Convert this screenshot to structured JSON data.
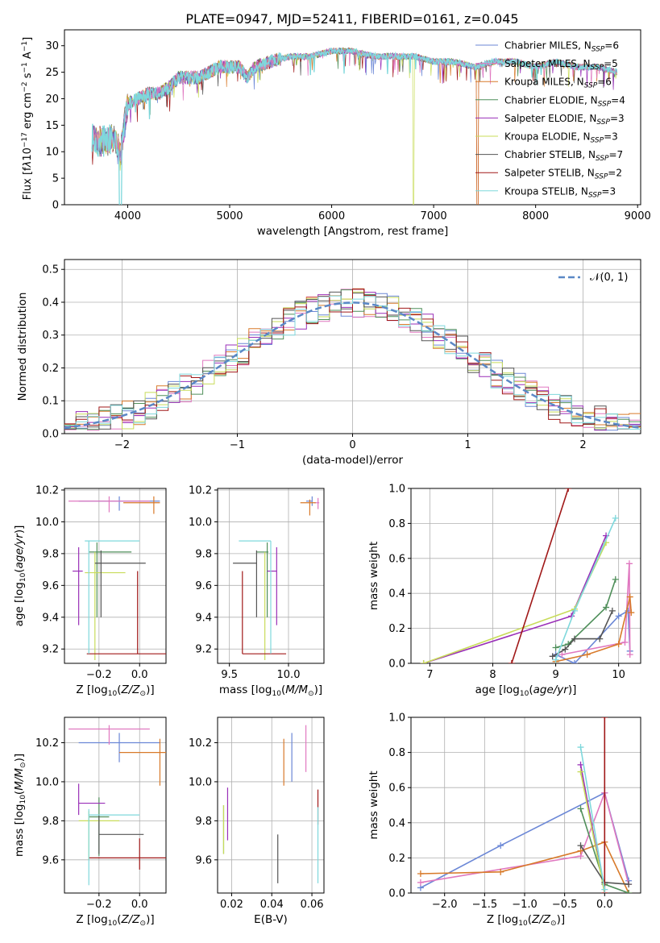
{
  "title": "PLATE=0947, MJD=52411, FIBERID=0161, z=0.045",
  "colors": {
    "Chabrier MILES": "#6b87d6",
    "Salpeter MILES": "#e078c0",
    "Kroupa MILES": "#d87a2a",
    "Chabrier ELODIE": "#4f8f5a",
    "Salpeter ELODIE": "#9a2fb8",
    "Kroupa ELODIE": "#c8dc5a",
    "Chabrier STELIB": "#555555",
    "Salpeter STELIB": "#a01818",
    "Kroupa STELIB": "#7fd8dc"
  },
  "chart_data": [
    {
      "type": "line",
      "title": "PLATE=0947, MJD=52411, FIBERID=0161, z=0.045",
      "xlabel": "wavelength [Angstrom, rest frame]",
      "ylabel": "Flux [f_λ 10^-17 erg cm^-2 s^-1 A^-1]",
      "xlim": [
        3380,
        9030
      ],
      "ylim": [
        0,
        33
      ],
      "xticks": [
        4000,
        5000,
        6000,
        7000,
        8000,
        9000
      ],
      "yticks": [
        0,
        5,
        10,
        15,
        20,
        25,
        30
      ],
      "legend": "top-right",
      "legend_entries": [
        {
          "model": "Chabrier MILES",
          "nssp": "6"
        },
        {
          "model": "Salpeter MILES",
          "nssp": "5"
        },
        {
          "model": "Kroupa MILES",
          "nssp": "6"
        },
        {
          "model": "Chabrier ELODIE",
          "nssp": "4"
        },
        {
          "model": "Salpeter ELODIE",
          "nssp": "3"
        },
        {
          "model": "Kroupa ELODIE",
          "nssp": "3"
        },
        {
          "model": "Chabrier STELIB",
          "nssp": "7"
        },
        {
          "model": "Salpeter STELIB",
          "nssp": "2"
        },
        {
          "model": "Kroupa STELIB",
          "nssp": "3"
        }
      ],
      "x": [
        3650,
        3700,
        3800,
        3870,
        3930,
        3960,
        4000,
        4100,
        4200,
        4300,
        4400,
        4500,
        4600,
        4700,
        4800,
        4900,
        5000,
        5100,
        5170,
        5250,
        5400,
        5600,
        5800,
        6000,
        6200,
        6400,
        6600,
        6800,
        7000,
        7200,
        7400,
        7600,
        7800,
        8000,
        8200,
        8400,
        8600,
        8800
      ],
      "y": [
        13,
        12,
        12,
        13,
        9,
        14,
        19,
        20,
        21,
        21,
        22,
        24,
        24,
        24,
        25,
        26,
        26,
        26,
        24,
        26,
        27,
        28,
        28,
        29,
        29,
        28,
        28,
        28,
        27,
        27,
        26,
        27,
        27,
        26,
        27,
        26,
        26,
        25
      ],
      "dips": [
        {
          "model": "Kroupa ELODIE",
          "from": 6800,
          "to": 6810
        },
        {
          "model": "Salpeter STELIB",
          "from": 7420,
          "to": 7440
        },
        {
          "model": "Kroupa MILES",
          "from": 7420,
          "to": 7440
        },
        {
          "model": "Kroupa STELIB",
          "from": 3920,
          "to": 3940
        }
      ]
    },
    {
      "type": "line",
      "xlabel": "(data-model)/error",
      "ylabel": "Normed distribution",
      "xlim": [
        -2.5,
        2.5
      ],
      "ylim": [
        0,
        0.53
      ],
      "xticks": [
        -2,
        -1,
        0,
        1,
        2
      ],
      "yticks": [
        0.0,
        0.1,
        0.2,
        0.3,
        0.4,
        0.5
      ],
      "grid": true,
      "legend": "top-right",
      "legend_label": "𝒩(0, 1)",
      "bin_width": 0.1,
      "bins_from": -2.5,
      "histogram_series": 9
    },
    {
      "type": "scatter",
      "xlabel": "Z [log10(Z/Z⊙)]",
      "ylabel": "age  [log10(age/yr)]",
      "xlim": [
        -0.37,
        0.13
      ],
      "ylim": [
        9.11,
        10.21
      ],
      "xticks": [
        -0.2,
        0.0
      ],
      "yticks": [
        9.2,
        9.4,
        9.6,
        9.8,
        10.0,
        10.2
      ],
      "grid": true,
      "points": [
        {
          "model": "Chabrier MILES",
          "x": -0.1,
          "y": 10.13,
          "xerr": [
            0.2,
            0.2
          ],
          "yerr": [
            0.06,
            0.03
          ]
        },
        {
          "model": "Salpeter MILES",
          "x": -0.15,
          "y": 10.13,
          "xerr": [
            0.2,
            0.2
          ],
          "yerr": [
            0.07,
            0.03
          ]
        },
        {
          "model": "Kroupa MILES",
          "x": 0.07,
          "y": 10.12,
          "xerr": [
            0.15,
            0.03
          ],
          "yerr": [
            0.07,
            0.04
          ]
        },
        {
          "model": "Chabrier ELODIE",
          "x": -0.21,
          "y": 9.81,
          "xerr": [
            0.04,
            0.17
          ],
          "yerr": [
            0.41,
            0.06
          ]
        },
        {
          "model": "Salpeter ELODIE",
          "x": -0.3,
          "y": 9.69,
          "xerr": [
            0.03,
            0.02
          ],
          "yerr": [
            0.34,
            0.15
          ]
        },
        {
          "model": "Kroupa ELODIE",
          "x": -0.22,
          "y": 9.68,
          "xerr": [
            0.05,
            0.15
          ],
          "yerr": [
            0.55,
            0.13
          ]
        },
        {
          "model": "Chabrier STELIB",
          "x": -0.19,
          "y": 9.74,
          "xerr": [
            0.03,
            0.22
          ],
          "yerr": [
            0.34,
            0.08
          ]
        },
        {
          "model": "Salpeter STELIB",
          "x": -0.01,
          "y": 9.17,
          "xerr": [
            0.25,
            0.14
          ],
          "yerr": [
            0.0,
            0.52
          ]
        },
        {
          "model": "Kroupa STELIB",
          "x": -0.25,
          "y": 9.88,
          "xerr": [
            0.02,
            0.25
          ],
          "yerr": [
            0.71,
            0.0
          ]
        }
      ]
    },
    {
      "type": "scatter",
      "xlabel": "mass [log10(M/M⊙)]",
      "xlim": [
        9.4,
        10.3
      ],
      "ylim": [
        9.11,
        10.21
      ],
      "xticks": [
        9.5,
        10.0
      ],
      "yticks": [
        9.2,
        9.4,
        9.6,
        9.8,
        10.0,
        10.2
      ],
      "grid": true,
      "points": [
        {
          "model": "Chabrier MILES",
          "x": 10.2,
          "y": 10.13,
          "xerr": [
            0.05,
            0.0
          ],
          "yerr": [
            0.03,
            0.03
          ]
        },
        {
          "model": "Salpeter MILES",
          "x": 10.25,
          "y": 10.12,
          "xerr": [
            0.03,
            0.01
          ],
          "yerr": [
            0.04,
            0.03
          ]
        },
        {
          "model": "Kroupa MILES",
          "x": 10.18,
          "y": 10.12,
          "xerr": [
            0.08,
            0.05
          ],
          "yerr": [
            0.08,
            0.02
          ]
        },
        {
          "model": "Chabrier ELODIE",
          "x": 9.82,
          "y": 9.81,
          "xerr": [
            0.09,
            0.01
          ],
          "yerr": [
            0.41,
            0.06
          ]
        },
        {
          "model": "Salpeter ELODIE",
          "x": 9.9,
          "y": 9.69,
          "xerr": [
            0.08,
            0.0
          ],
          "yerr": [
            0.34,
            0.15
          ]
        },
        {
          "model": "Kroupa ELODIE",
          "x": 9.8,
          "y": 9.68,
          "xerr": [
            0.0,
            0.0
          ],
          "yerr": [
            0.55,
            0.13
          ]
        },
        {
          "model": "Chabrier STELIB",
          "x": 9.73,
          "y": 9.74,
          "xerr": [
            0.2,
            0.0
          ],
          "yerr": [
            0.34,
            0.08
          ]
        },
        {
          "model": "Salpeter STELIB",
          "x": 9.61,
          "y": 9.17,
          "xerr": [
            0.0,
            0.37
          ],
          "yerr": [
            0.0,
            0.52
          ]
        },
        {
          "model": "Kroupa STELIB",
          "x": 9.85,
          "y": 9.88,
          "xerr": [
            0.27,
            0.0
          ],
          "yerr": [
            0.71,
            0.0
          ]
        }
      ]
    },
    {
      "type": "line",
      "xlabel": "age  [log10(age/yr)]",
      "ylabel": "mass weight",
      "xlim": [
        6.7,
        10.35
      ],
      "ylim": [
        0,
        1.0
      ],
      "xticks": [
        7,
        8,
        9,
        10
      ],
      "yticks": [
        0.0,
        0.2,
        0.4,
        0.6,
        0.8,
        1.0
      ],
      "grid": true,
      "series": [
        {
          "model": "Chabrier MILES",
          "x": [
            9.0,
            9.3,
            10.0,
            10.15,
            10.18
          ],
          "y": [
            0.05,
            0.0,
            0.27,
            0.3,
            0.07
          ]
        },
        {
          "model": "Salpeter MILES",
          "x": [
            9.1,
            10.1,
            10.17,
            10.18
          ],
          "y": [
            0.05,
            0.12,
            0.57,
            0.05
          ]
        },
        {
          "model": "Kroupa MILES",
          "x": [
            9.0,
            9.5,
            10.0,
            10.18,
            10.2
          ],
          "y": [
            0.01,
            0.05,
            0.11,
            0.38,
            0.29
          ]
        },
        {
          "model": "Chabrier ELODIE",
          "x": [
            9.0,
            9.2,
            9.8,
            9.95
          ],
          "y": [
            0.09,
            0.11,
            0.32,
            0.48
          ]
        },
        {
          "model": "Salpeter ELODIE",
          "x": [
            6.9,
            9.25,
            9.8
          ],
          "y": [
            0.0,
            0.27,
            0.73
          ]
        },
        {
          "model": "Kroupa ELODIE",
          "x": [
            6.9,
            9.3,
            9.8
          ],
          "y": [
            0.0,
            0.31,
            0.69
          ]
        },
        {
          "model": "Chabrier STELIB",
          "x": [
            8.95,
            9.15,
            9.3,
            9.7,
            9.9
          ],
          "y": [
            0.04,
            0.08,
            0.14,
            0.14,
            0.3
          ]
        },
        {
          "model": "Salpeter STELIB",
          "x": [
            8.3,
            9.2
          ],
          "y": [
            0.0,
            1.0
          ]
        },
        {
          "model": "Kroupa STELIB",
          "x": [
            9.0,
            9.3,
            9.95
          ],
          "y": [
            0.02,
            0.3,
            0.83
          ]
        }
      ]
    },
    {
      "type": "scatter",
      "xlabel": "Z [log10(Z/Z⊙)]",
      "ylabel": "mass [log10(M/M⊙)]",
      "xlim": [
        -0.37,
        0.13
      ],
      "ylim": [
        9.43,
        10.33
      ],
      "xticks": [
        -0.2,
        0.0
      ],
      "yticks": [
        9.6,
        9.8,
        10.0,
        10.2
      ],
      "grid": true,
      "points": [
        {
          "model": "Chabrier MILES",
          "x": -0.1,
          "y": 10.2,
          "xerr": [
            0.2,
            0.2
          ],
          "yerr": [
            0.1,
            0.05
          ]
        },
        {
          "model": "Salpeter MILES",
          "x": -0.15,
          "y": 10.27,
          "xerr": [
            0.2,
            0.2
          ],
          "yerr": [
            0.08,
            0.02
          ]
        },
        {
          "model": "Kroupa MILES",
          "x": 0.1,
          "y": 10.15,
          "xerr": [
            0.2,
            0.03
          ],
          "yerr": [
            0.17,
            0.07
          ]
        },
        {
          "model": "Chabrier ELODIE",
          "x": -0.2,
          "y": 9.82,
          "xerr": [
            0.05,
            0.05
          ],
          "yerr": [
            0.2,
            0.1
          ]
        },
        {
          "model": "Salpeter ELODIE",
          "x": -0.3,
          "y": 9.89,
          "xerr": [
            0.0,
            0.13
          ],
          "yerr": [
            0.06,
            0.1
          ]
        },
        {
          "model": "Kroupa ELODIE",
          "x": -0.25,
          "y": 9.8,
          "xerr": [
            0.05,
            0.15
          ],
          "yerr": [
            0.2,
            0.05
          ]
        },
        {
          "model": "Chabrier STELIB",
          "x": -0.2,
          "y": 9.73,
          "xerr": [
            0.0,
            0.22
          ],
          "yerr": [
            0.1,
            0.1
          ]
        },
        {
          "model": "Salpeter STELIB",
          "x": 0.0,
          "y": 9.61,
          "xerr": [
            0.25,
            0.13
          ],
          "yerr": [
            0.06,
            0.1
          ]
        },
        {
          "model": "Kroupa STELIB",
          "x": -0.25,
          "y": 9.83,
          "xerr": [
            0.0,
            0.25
          ],
          "yerr": [
            0.36,
            0.03
          ]
        }
      ]
    },
    {
      "type": "scatter",
      "xlabel": "E(B-V)",
      "xlim": [
        0.013,
        0.066
      ],
      "ylim": [
        9.43,
        10.33
      ],
      "xticks": [
        0.02,
        0.04,
        0.06
      ],
      "yticks": [
        9.6,
        9.8,
        10.0,
        10.2
      ],
      "grid": true,
      "points": [
        {
          "model": "Chabrier MILES",
          "x": 0.05,
          "y": 10.1,
          "yerr": [
            0.1,
            0.15
          ]
        },
        {
          "model": "Salpeter MILES",
          "x": 0.057,
          "y": 10.15,
          "yerr": [
            0.1,
            0.14
          ]
        },
        {
          "model": "Kroupa MILES",
          "x": 0.046,
          "y": 10.06,
          "yerr": [
            0.08,
            0.16
          ]
        },
        {
          "model": "Chabrier ELODIE",
          "x": 0.016,
          "y": 9.78,
          "yerr": [
            0.15,
            0.1
          ]
        },
        {
          "model": "Salpeter ELODIE",
          "x": 0.018,
          "y": 9.83,
          "yerr": [
            0.13,
            0.14
          ]
        },
        {
          "model": "Kroupa ELODIE",
          "x": 0.016,
          "y": 9.78,
          "yerr": [
            0.15,
            0.1
          ]
        },
        {
          "model": "Chabrier STELIB",
          "x": 0.043,
          "y": 9.58,
          "yerr": [
            0.1,
            0.15
          ]
        },
        {
          "model": "Salpeter STELIB",
          "x": 0.063,
          "y": 9.88,
          "yerr": [
            0.1,
            0.08
          ]
        },
        {
          "model": "Kroupa STELIB",
          "x": 0.063,
          "y": 9.7,
          "yerr": [
            0.22,
            0.17
          ]
        }
      ]
    },
    {
      "type": "line",
      "xlabel": "Z [log10(Z/Z⊙)]",
      "ylabel": "mass weight",
      "xlim": [
        -2.42,
        0.45
      ],
      "ylim": [
        0,
        1.0
      ],
      "xticks": [
        -2.0,
        -1.5,
        -1.0,
        -0.5,
        0.0
      ],
      "yticks": [
        0.0,
        0.2,
        0.4,
        0.6,
        0.8,
        1.0
      ],
      "grid": true,
      "series": [
        {
          "model": "Chabrier MILES",
          "x": [
            -2.3,
            -1.3,
            0.0,
            0.3
          ],
          "y": [
            0.03,
            0.27,
            0.57,
            0.07
          ]
        },
        {
          "model": "Salpeter MILES",
          "x": [
            -2.3,
            -0.3,
            0.0,
            0.3
          ],
          "y": [
            0.06,
            0.21,
            0.57,
            0.05
          ]
        },
        {
          "model": "Kroupa MILES",
          "x": [
            -2.3,
            -1.3,
            -0.3,
            0.0,
            0.3
          ],
          "y": [
            0.11,
            0.12,
            0.24,
            0.29,
            0.0
          ]
        },
        {
          "model": "Chabrier ELODIE",
          "x": [
            -0.3,
            0.0,
            0.3
          ],
          "y": [
            0.48,
            0.05,
            0.0
          ]
        },
        {
          "model": "Salpeter ELODIE",
          "x": [
            -0.3,
            0.0
          ],
          "y": [
            0.73,
            0.0
          ]
        },
        {
          "model": "Kroupa ELODIE",
          "x": [
            -0.3,
            0.0
          ],
          "y": [
            0.69,
            0.0
          ]
        },
        {
          "model": "Chabrier STELIB",
          "x": [
            -0.3,
            0.0,
            0.3
          ],
          "y": [
            0.27,
            0.06,
            0.05
          ]
        },
        {
          "model": "Salpeter STELIB",
          "x": [
            0.0,
            0.0
          ],
          "y": [
            0.0,
            1.0
          ]
        },
        {
          "model": "Kroupa STELIB",
          "x": [
            -0.3,
            0.0
          ],
          "y": [
            0.83,
            0.02
          ]
        }
      ]
    }
  ]
}
